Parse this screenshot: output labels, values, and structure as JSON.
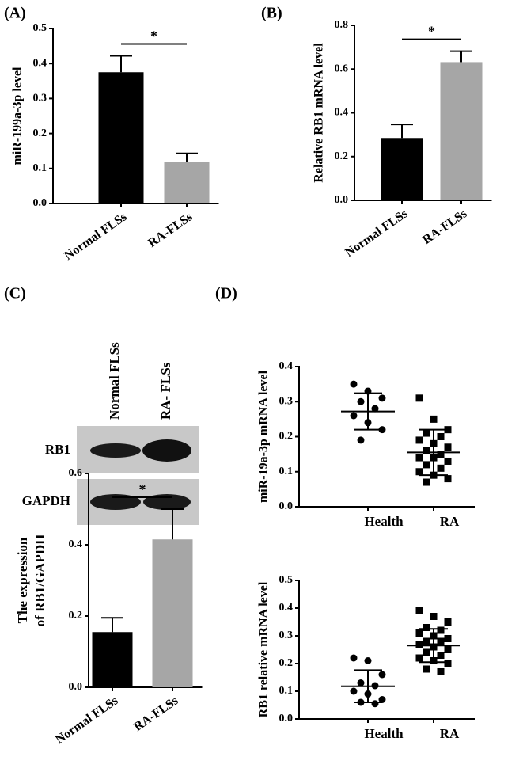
{
  "chart_data": [
    {
      "type": "bar",
      "panel": "(A)",
      "ylabel": "miR-199a-3p level",
      "categories": [
        "Normal FLSs",
        "RA-FLSs"
      ],
      "values": [
        0.375,
        0.118
      ],
      "errors": [
        0.047,
        0.025
      ],
      "colors": [
        "#000000",
        "#a6a6a6"
      ],
      "ylim": [
        0,
        0.5
      ],
      "yticks": [
        {
          "value": 0,
          "label": "0.0"
        },
        0.1,
        0.2,
        0.3,
        0.4,
        0.5
      ],
      "significance": "*"
    },
    {
      "type": "bar",
      "panel": "(B)",
      "ylabel": "Relative RB1 mRNA level",
      "categories": [
        "Normal FLSs",
        "RA-FLSs"
      ],
      "values": [
        0.285,
        0.632
      ],
      "errors": [
        0.062,
        0.05
      ],
      "colors": [
        "#000000",
        "#a6a6a6"
      ],
      "ylim": [
        0,
        0.8
      ],
      "yticks": [
        {
          "value": 0,
          "label": "0.0"
        },
        0.2,
        0.4,
        0.6,
        0.8
      ],
      "significance": "*"
    },
    {
      "type": "bar",
      "panel": "(C)",
      "ylabel": [
        "The expression",
        "of RB1/GAPDH"
      ],
      "blot": {
        "columns": [
          "Normal FLSs",
          "RA- FLSs"
        ],
        "rows": [
          "RB1",
          "GAPDH"
        ]
      },
      "categories": [
        "Normal FLSs",
        "RA-FLSs"
      ],
      "values": [
        0.155,
        0.415
      ],
      "errors": [
        0.04,
        0.085
      ],
      "colors": [
        "#000000",
        "#a6a6a6"
      ],
      "ylim": [
        0,
        0.6
      ],
      "yticks": [
        {
          "value": 0,
          "label": "0.0"
        },
        0.2,
        0.4,
        0.6
      ],
      "significance": "*"
    },
    {
      "type": "scatter",
      "panel": "(D)",
      "ylabel": "miR-19a-3p mRNA level",
      "categories": [
        "Health",
        "RA"
      ],
      "ylim": [
        0,
        0.4
      ],
      "yticks": [
        {
          "value": 0,
          "label": "0.0"
        },
        0.1,
        0.2,
        0.3,
        0.4
      ],
      "groups": [
        {
          "marker": "circle",
          "mean": 0.272,
          "sd": 0.052,
          "values": [
            0.35,
            0.33,
            0.31,
            0.3,
            0.28,
            0.26,
            0.24,
            0.22,
            0.19
          ]
        },
        {
          "marker": "square",
          "mean": 0.155,
          "sd": 0.065,
          "values": [
            0.31,
            0.25,
            0.22,
            0.21,
            0.2,
            0.19,
            0.18,
            0.17,
            0.16,
            0.15,
            0.14,
            0.14,
            0.13,
            0.12,
            0.11,
            0.1,
            0.09,
            0.08,
            0.07
          ]
        }
      ]
    },
    {
      "type": "scatter",
      "ylabel": "RB1 relative mRNA level",
      "categories": [
        "Health",
        "RA"
      ],
      "ylim": [
        0,
        0.5
      ],
      "yticks": [
        {
          "value": 0,
          "label": "0.0"
        },
        0.1,
        0.2,
        0.3,
        0.4,
        0.5
      ],
      "groups": [
        {
          "marker": "circle",
          "mean": 0.118,
          "sd": 0.058,
          "values": [
            0.22,
            0.21,
            0.16,
            0.13,
            0.12,
            0.1,
            0.09,
            0.07,
            0.06,
            0.055
          ]
        },
        {
          "marker": "square",
          "mean": 0.265,
          "sd": 0.06,
          "values": [
            0.39,
            0.37,
            0.35,
            0.33,
            0.32,
            0.31,
            0.3,
            0.29,
            0.28,
            0.28,
            0.27,
            0.26,
            0.25,
            0.24,
            0.23,
            0.22,
            0.21,
            0.2,
            0.18,
            0.17
          ]
        }
      ]
    }
  ]
}
